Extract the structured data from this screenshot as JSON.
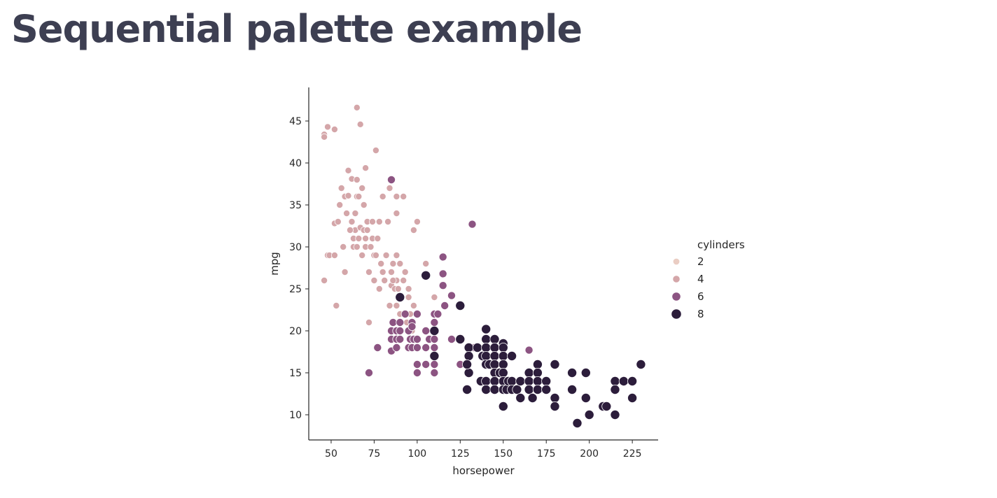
{
  "page": {
    "title": "Sequential palette example"
  },
  "chart_data": {
    "type": "scatter",
    "title": "",
    "xlabel": "horsepower",
    "ylabel": "mpg",
    "xlim": [
      37,
      240
    ],
    "ylim": [
      7,
      49
    ],
    "xticks": [
      50,
      75,
      100,
      125,
      150,
      175,
      200,
      225
    ],
    "yticks": [
      10,
      15,
      20,
      25,
      30,
      35,
      40,
      45
    ],
    "grid": false,
    "hue": "cylinders",
    "legend": {
      "title": "cylinders",
      "placement": "right",
      "entries": [
        {
          "label": "2",
          "color": "#eacdc3"
        },
        {
          "label": "4",
          "color": "#d4a6a9"
        },
        {
          "label": "6",
          "color": "#8c5482"
        },
        {
          "label": "8",
          "color": "#2c1d3b"
        }
      ]
    },
    "series": [
      {
        "name": "4",
        "points": [
          [
            46,
            43.4
          ],
          [
            46,
            43.1
          ],
          [
            46,
            26
          ],
          [
            48,
            44.3
          ],
          [
            48,
            29
          ],
          [
            49,
            29
          ],
          [
            52,
            44
          ],
          [
            52,
            32.8
          ],
          [
            52,
            29
          ],
          [
            53,
            23
          ],
          [
            54,
            33
          ],
          [
            58,
            36
          ],
          [
            58,
            27
          ],
          [
            60,
            36.1
          ],
          [
            60,
            39.1
          ],
          [
            62,
            38.1
          ],
          [
            63,
            30
          ],
          [
            63,
            31
          ],
          [
            64,
            32
          ],
          [
            65,
            46.6
          ],
          [
            65,
            30
          ],
          [
            65,
            38
          ],
          [
            65,
            36
          ],
          [
            67,
            44.6
          ],
          [
            67,
            32.3
          ],
          [
            68,
            29
          ],
          [
            68,
            37
          ],
          [
            69,
            32
          ],
          [
            70,
            39.4
          ],
          [
            70,
            30
          ],
          [
            71,
            32
          ],
          [
            72,
            27
          ],
          [
            72,
            21
          ],
          [
            74,
            31
          ],
          [
            75,
            29
          ],
          [
            75,
            26
          ],
          [
            76,
            41.5
          ],
          [
            78,
            33
          ],
          [
            78,
            25
          ],
          [
            80,
            36
          ],
          [
            80,
            27
          ],
          [
            83,
            33
          ],
          [
            84,
            23
          ],
          [
            84,
            37
          ],
          [
            85,
            27
          ],
          [
            85,
            25.4
          ],
          [
            86,
            28
          ],
          [
            87,
            25
          ],
          [
            88,
            26
          ],
          [
            88,
            29
          ],
          [
            88,
            36
          ],
          [
            88,
            34
          ],
          [
            88,
            23
          ],
          [
            90,
            22
          ],
          [
            90,
            28
          ],
          [
            91,
            24
          ],
          [
            92,
            36
          ],
          [
            92,
            26
          ],
          [
            93,
            27
          ],
          [
            95,
            24
          ],
          [
            95,
            25
          ],
          [
            96,
            22
          ],
          [
            97,
            20
          ],
          [
            98,
            32
          ],
          [
            98,
            23
          ],
          [
            100,
            33
          ],
          [
            105,
            28
          ],
          [
            110,
            24
          ],
          [
            55,
            35
          ],
          [
            56,
            37
          ],
          [
            57,
            30
          ],
          [
            59,
            34
          ],
          [
            61,
            32
          ],
          [
            62,
            33
          ],
          [
            64,
            34
          ],
          [
            66,
            36
          ],
          [
            66,
            31
          ],
          [
            69,
            35
          ],
          [
            70,
            31
          ],
          [
            71,
            33
          ],
          [
            73,
            30
          ],
          [
            74,
            33
          ],
          [
            76,
            29
          ],
          [
            77,
            31
          ],
          [
            79,
            28
          ],
          [
            81,
            26
          ],
          [
            82,
            29
          ],
          [
            86,
            26
          ],
          [
            89,
            25
          ],
          [
            94,
            21
          ]
        ]
      },
      {
        "name": "6",
        "points": [
          [
            72,
            15
          ],
          [
            77,
            18
          ],
          [
            85,
            38
          ],
          [
            85,
            17.6
          ],
          [
            85,
            20
          ],
          [
            85,
            19
          ],
          [
            86,
            21
          ],
          [
            88,
            20
          ],
          [
            88,
            18
          ],
          [
            88,
            19
          ],
          [
            90,
            21
          ],
          [
            90,
            19
          ],
          [
            90,
            20
          ],
          [
            95,
            18
          ],
          [
            95,
            20
          ],
          [
            96,
            19
          ],
          [
            97,
            18
          ],
          [
            97,
            21
          ],
          [
            98,
            19
          ],
          [
            100,
            22
          ],
          [
            100,
            18
          ],
          [
            100,
            16
          ],
          [
            100,
            15
          ],
          [
            100,
            19
          ],
          [
            105,
            20
          ],
          [
            105,
            18
          ],
          [
            105,
            16
          ],
          [
            107,
            19
          ],
          [
            110,
            22
          ],
          [
            110,
            21
          ],
          [
            110,
            19
          ],
          [
            110,
            18
          ],
          [
            110,
            17
          ],
          [
            110,
            16
          ],
          [
            110,
            15
          ],
          [
            112,
            22
          ],
          [
            115,
            28.8
          ],
          [
            115,
            26.8
          ],
          [
            115,
            25.4
          ],
          [
            116,
            23
          ],
          [
            120,
            24.2
          ],
          [
            120,
            19
          ],
          [
            125,
            16
          ],
          [
            132,
            32.7
          ],
          [
            133,
            18
          ],
          [
            165,
            17.7
          ],
          [
            97,
            20.5
          ],
          [
            93,
            22
          ]
        ]
      },
      {
        "name": "8",
        "points": [
          [
            90,
            24
          ],
          [
            105,
            26.6
          ],
          [
            110,
            17
          ],
          [
            110,
            20
          ],
          [
            125,
            23
          ],
          [
            125,
            19
          ],
          [
            129,
            13
          ],
          [
            130,
            18
          ],
          [
            130,
            17
          ],
          [
            130,
            15
          ],
          [
            135,
            18
          ],
          [
            137,
            14
          ],
          [
            138,
            17
          ],
          [
            140,
            20.2
          ],
          [
            140,
            19
          ],
          [
            140,
            18
          ],
          [
            140,
            17
          ],
          [
            140,
            16
          ],
          [
            140,
            14
          ],
          [
            140,
            13
          ],
          [
            142,
            16
          ],
          [
            145,
            19
          ],
          [
            145,
            18
          ],
          [
            145,
            17
          ],
          [
            145,
            16
          ],
          [
            145,
            15
          ],
          [
            145,
            14
          ],
          [
            145,
            13
          ],
          [
            148,
            15
          ],
          [
            150,
            18.5
          ],
          [
            150,
            18
          ],
          [
            150,
            17
          ],
          [
            150,
            16
          ],
          [
            150,
            15
          ],
          [
            150,
            14
          ],
          [
            150,
            13
          ],
          [
            150,
            11
          ],
          [
            152,
            13
          ],
          [
            153,
            14
          ],
          [
            155,
            17
          ],
          [
            155,
            14
          ],
          [
            155,
            13
          ],
          [
            158,
            13
          ],
          [
            160,
            14
          ],
          [
            160,
            12
          ],
          [
            165,
            15
          ],
          [
            165,
            14
          ],
          [
            165,
            13
          ],
          [
            167,
            12
          ],
          [
            170,
            16
          ],
          [
            170,
            15
          ],
          [
            170,
            14
          ],
          [
            170,
            13
          ],
          [
            175,
            14
          ],
          [
            175,
            13
          ],
          [
            180,
            16
          ],
          [
            180,
            12
          ],
          [
            180,
            11
          ],
          [
            190,
            15
          ],
          [
            190,
            13
          ],
          [
            193,
            9
          ],
          [
            198,
            15
          ],
          [
            198,
            12
          ],
          [
            200,
            10
          ],
          [
            208,
            11
          ],
          [
            210,
            11
          ],
          [
            215,
            14
          ],
          [
            215,
            13
          ],
          [
            215,
            10
          ],
          [
            220,
            14
          ],
          [
            225,
            14
          ],
          [
            225,
            12
          ],
          [
            230,
            16
          ],
          [
            129,
            16
          ]
        ]
      }
    ]
  }
}
